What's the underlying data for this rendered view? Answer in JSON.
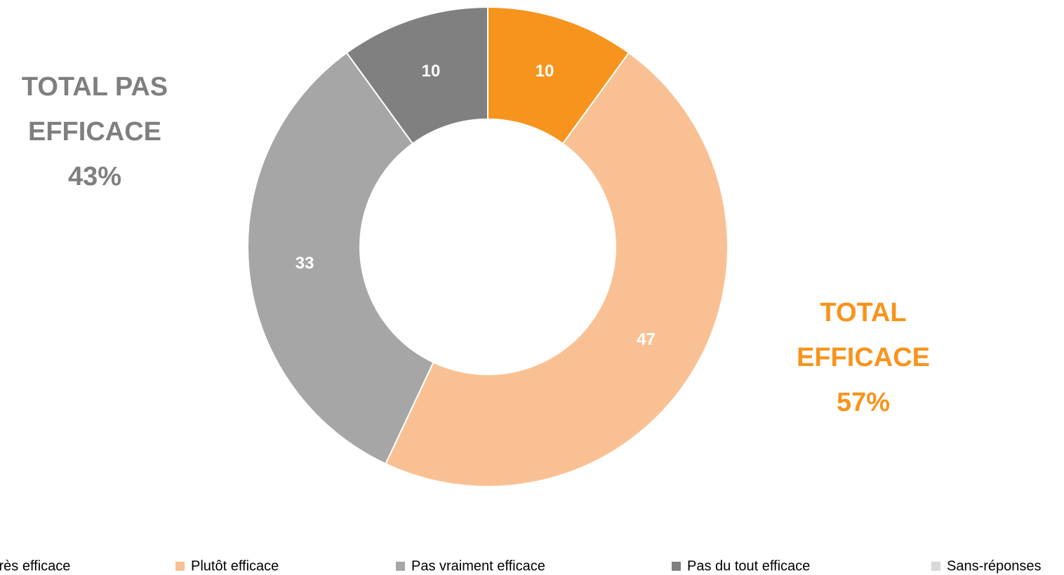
{
  "chart_data": {
    "type": "donut",
    "categories": [
      "Très efficace",
      "Plutôt efficace",
      "Pas vraiment efficace",
      "Pas du tout efficace",
      "Sans-réponses"
    ],
    "values": [
      10,
      47,
      33,
      10,
      0
    ],
    "colors": [
      "#f7941d",
      "#f9c193",
      "#a6a6a6",
      "#808080",
      "#d9d9d9"
    ],
    "annotations": [
      {
        "label": "TOTAL PAS EFFICACE",
        "value": 43,
        "value_label": "43%",
        "color": "#7f7f7f"
      },
      {
        "label": "TOTAL EFFICACE",
        "value": 57,
        "value_label": "57%",
        "color": "#f7941d"
      }
    ],
    "legend": "bottom"
  }
}
